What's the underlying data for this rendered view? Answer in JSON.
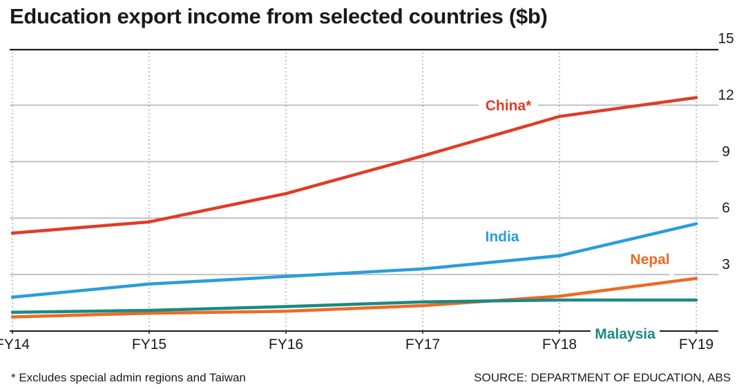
{
  "chart_data": {
    "type": "line",
    "title": "Education export income from selected countries ($b)",
    "xlabel": "",
    "ylabel": "",
    "x": [
      "FY14",
      "FY15",
      "FY16",
      "FY17",
      "FY18",
      "FY19"
    ],
    "yticks": [
      3,
      6,
      9,
      12,
      15
    ],
    "ylim": [
      0,
      15.5
    ],
    "ytick_side": "right",
    "grid": "horizontal solid, vertical dotted",
    "series": [
      {
        "name": "China*",
        "color": "#e03c26",
        "values": [
          5.2,
          5.8,
          7.3,
          9.3,
          11.4,
          12.4
        ]
      },
      {
        "name": "India",
        "color": "#2a9ddc",
        "values": [
          1.8,
          2.5,
          2.9,
          3.3,
          4.0,
          5.7
        ]
      },
      {
        "name": "Nepal",
        "color": "#ef6a23",
        "values": [
          0.75,
          0.95,
          1.05,
          1.35,
          1.85,
          2.8
        ]
      },
      {
        "name": "Malaysia",
        "color": "#1a8a85",
        "values": [
          1.0,
          1.1,
          1.3,
          1.55,
          1.65,
          1.65
        ]
      }
    ],
    "footnote": "* Excludes special admin regions and Taiwan",
    "source": "SOURCE: DEPARTMENT OF EDUCATION, ABS"
  }
}
